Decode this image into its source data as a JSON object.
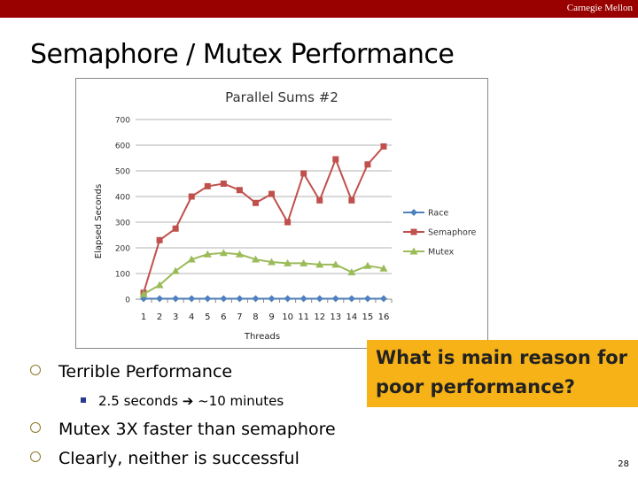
{
  "header": {
    "brand": "Carnegie Mellon"
  },
  "slide": {
    "title": "Semaphore / Mutex Performance",
    "bullets": [
      {
        "text": "Terrible Performance"
      },
      {
        "text": "Mutex 3X faster than semaphore"
      },
      {
        "text": "Clearly, neither is successful"
      }
    ],
    "sub_bullet": {
      "prefix": "2.5 seconds",
      "arrow": "➔",
      "suffix": "~10 minutes"
    },
    "callout": {
      "line1": "What is main reason for",
      "line2": "poor performance?"
    },
    "page_number": "28"
  },
  "chart_data": {
    "type": "line",
    "title": "Parallel Sums #2",
    "xlabel": "Threads",
    "ylabel": "Elapsed Seconds",
    "categories": [
      "1",
      "2",
      "3",
      "4",
      "5",
      "6",
      "7",
      "8",
      "9",
      "10",
      "11",
      "12",
      "13",
      "14",
      "15",
      "16"
    ],
    "ylim": [
      0,
      700
    ],
    "yticks": [
      0,
      100,
      200,
      300,
      400,
      500,
      600,
      700
    ],
    "grid": true,
    "legend": "right",
    "series": [
      {
        "name": "Race",
        "color": "#4f81bd",
        "marker": "diamond",
        "values": [
          2,
          2,
          2,
          2,
          2,
          2,
          2,
          2,
          2,
          2,
          2,
          2,
          2,
          2,
          2,
          2
        ]
      },
      {
        "name": "Semaphore",
        "color": "#c0504d",
        "marker": "square",
        "values": [
          25,
          230,
          275,
          400,
          440,
          450,
          425,
          375,
          410,
          300,
          490,
          385,
          545,
          385,
          525,
          595
        ]
      },
      {
        "name": "Mutex",
        "color": "#9bbb59",
        "marker": "triangle",
        "values": [
          20,
          55,
          110,
          155,
          175,
          180,
          175,
          155,
          145,
          140,
          140,
          135,
          135,
          105,
          130,
          120
        ]
      }
    ]
  }
}
